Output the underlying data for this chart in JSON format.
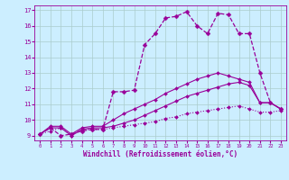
{
  "xlabel": "Windchill (Refroidissement éolien,°C)",
  "bg_color": "#cceeff",
  "line_color": "#990099",
  "grid_color": "#aacccc",
  "xlim": [
    -0.5,
    23.5
  ],
  "ylim": [
    8.7,
    17.3
  ],
  "yticks": [
    9,
    10,
    11,
    12,
    13,
    14,
    15,
    16,
    17
  ],
  "xticks": [
    0,
    1,
    2,
    3,
    4,
    5,
    6,
    7,
    8,
    9,
    10,
    11,
    12,
    13,
    14,
    15,
    16,
    17,
    18,
    19,
    20,
    21,
    22,
    23
  ],
  "series": [
    {
      "y": [
        9.1,
        9.3,
        9.5,
        9.0,
        9.4,
        9.4,
        9.4,
        9.5,
        9.6,
        9.7,
        9.8,
        9.9,
        10.1,
        10.2,
        10.4,
        10.5,
        10.6,
        10.7,
        10.8,
        10.9,
        10.7,
        10.5,
        10.5,
        10.6
      ],
      "linestyle": "dotted",
      "linewidth": 0.8,
      "marker": "D",
      "markersize": 2.0
    },
    {
      "y": [
        9.1,
        9.5,
        9.5,
        9.0,
        9.4,
        9.5,
        9.5,
        9.6,
        9.8,
        10.0,
        10.3,
        10.6,
        10.9,
        11.2,
        11.5,
        11.7,
        11.9,
        12.1,
        12.3,
        12.4,
        12.2,
        11.1,
        11.1,
        10.7
      ],
      "linestyle": "solid",
      "linewidth": 0.8,
      "marker": "D",
      "markersize": 2.0
    },
    {
      "y": [
        9.1,
        9.6,
        9.6,
        9.1,
        9.5,
        9.6,
        9.6,
        10.0,
        10.4,
        10.7,
        11.0,
        11.3,
        11.7,
        12.0,
        12.3,
        12.6,
        12.8,
        13.0,
        12.8,
        12.6,
        12.4,
        11.1,
        11.1,
        10.7
      ],
      "linestyle": "solid",
      "linewidth": 0.8,
      "marker": "D",
      "markersize": 2.0
    },
    {
      "y": [
        9.1,
        9.5,
        9.0,
        9.1,
        9.3,
        9.4,
        9.4,
        11.8,
        11.8,
        11.9,
        14.8,
        15.5,
        16.5,
        16.6,
        16.9,
        16.0,
        15.5,
        16.8,
        16.7,
        15.5,
        15.5,
        13.0,
        11.1,
        10.7
      ],
      "linestyle": "dashed",
      "linewidth": 0.9,
      "marker": "D",
      "markersize": 2.5
    }
  ]
}
